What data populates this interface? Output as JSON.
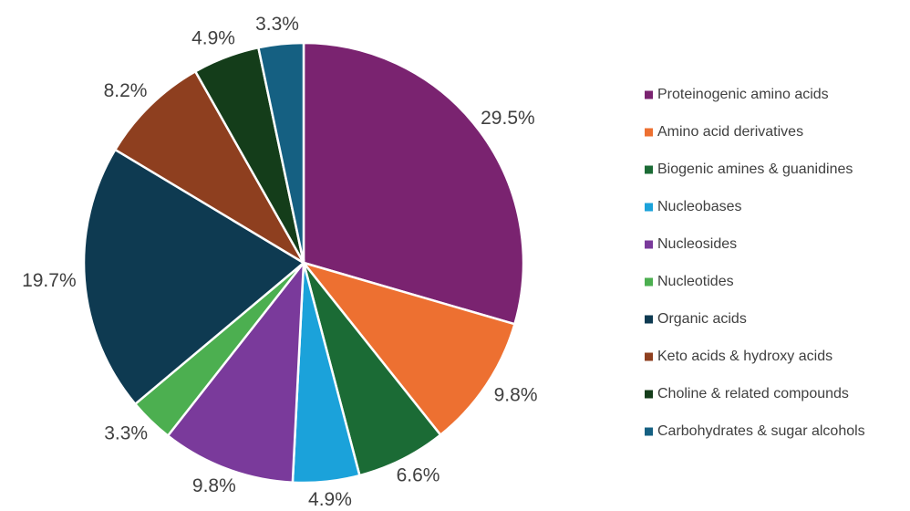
{
  "chart_data": {
    "type": "pie",
    "categories": [
      "Proteinogenic amino acids",
      "Amino acid derivatives",
      "Biogenic amines & guanidines",
      "Nucleobases",
      "Nucleosides",
      "Nucleotides",
      "Organic acids",
      "Keto acids & hydroxy acids",
      "Choline & related compounds",
      "Carbohydrates & sugar alcohols"
    ],
    "values": [
      29.5,
      9.8,
      6.6,
      4.9,
      9.8,
      3.3,
      19.7,
      8.2,
      4.9,
      3.3
    ],
    "value_labels": [
      "29.5%",
      "9.8%",
      "6.6%",
      "4.9%",
      "9.8%",
      "3.3%",
      "19.7%",
      "8.2%",
      "4.9%",
      "3.3%"
    ],
    "colors": [
      "#7a2370",
      "#ed7031",
      "#1b6b35",
      "#1ba2da",
      "#7a3a9b",
      "#4caf50",
      "#0e3a51",
      "#8e3f1f",
      "#143d1a",
      "#156082"
    ],
    "legend": "right"
  }
}
